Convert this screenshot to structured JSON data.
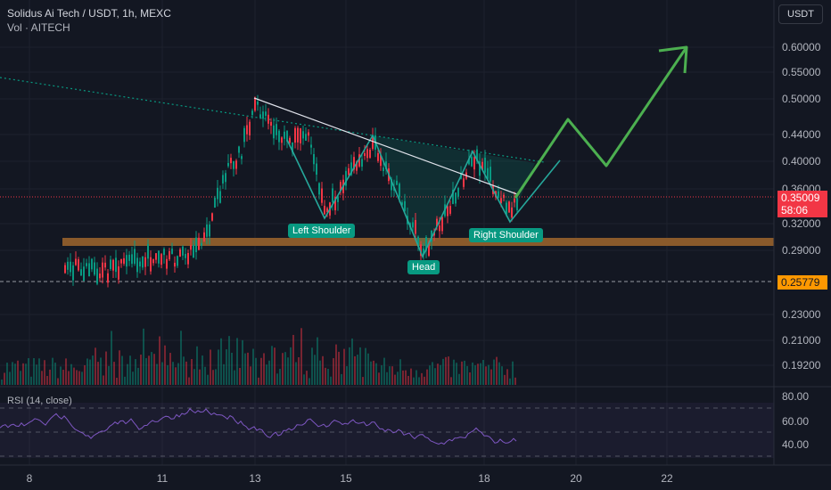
{
  "header": {
    "symbol_title": "Solidus Ai Tech / USDT, 1h, MEXC",
    "volume_label": "Vol · AITECH",
    "currency_button": "USDT"
  },
  "price_axis": {
    "ticks": [
      "0.60000",
      "0.55000",
      "0.50000",
      "0.44000",
      "0.40000",
      "0.36000",
      "0.32000",
      "0.29000",
      "0.23000",
      "0.21000",
      "0.19200"
    ],
    "current_price": "0.35009",
    "countdown": "58:06",
    "level_price": "0.25779"
  },
  "rsi": {
    "label": "RSI (14, close)",
    "ticks": [
      "80.00",
      "60.00",
      "40.00"
    ]
  },
  "time_axis": {
    "ticks": [
      "8",
      "11",
      "13",
      "15",
      "18",
      "20",
      "22"
    ]
  },
  "annotations": {
    "left_shoulder": "Left Shoulder",
    "head": "Head",
    "right_shoulder": "Right Shoulder"
  },
  "colors": {
    "background": "#131722",
    "bull": "#089981",
    "bear": "#f23645",
    "support_zone": "#8a5a2b",
    "projection": "#4caf50",
    "rsi_line": "#7e57c2",
    "level_tag": "#ff9800"
  }
}
